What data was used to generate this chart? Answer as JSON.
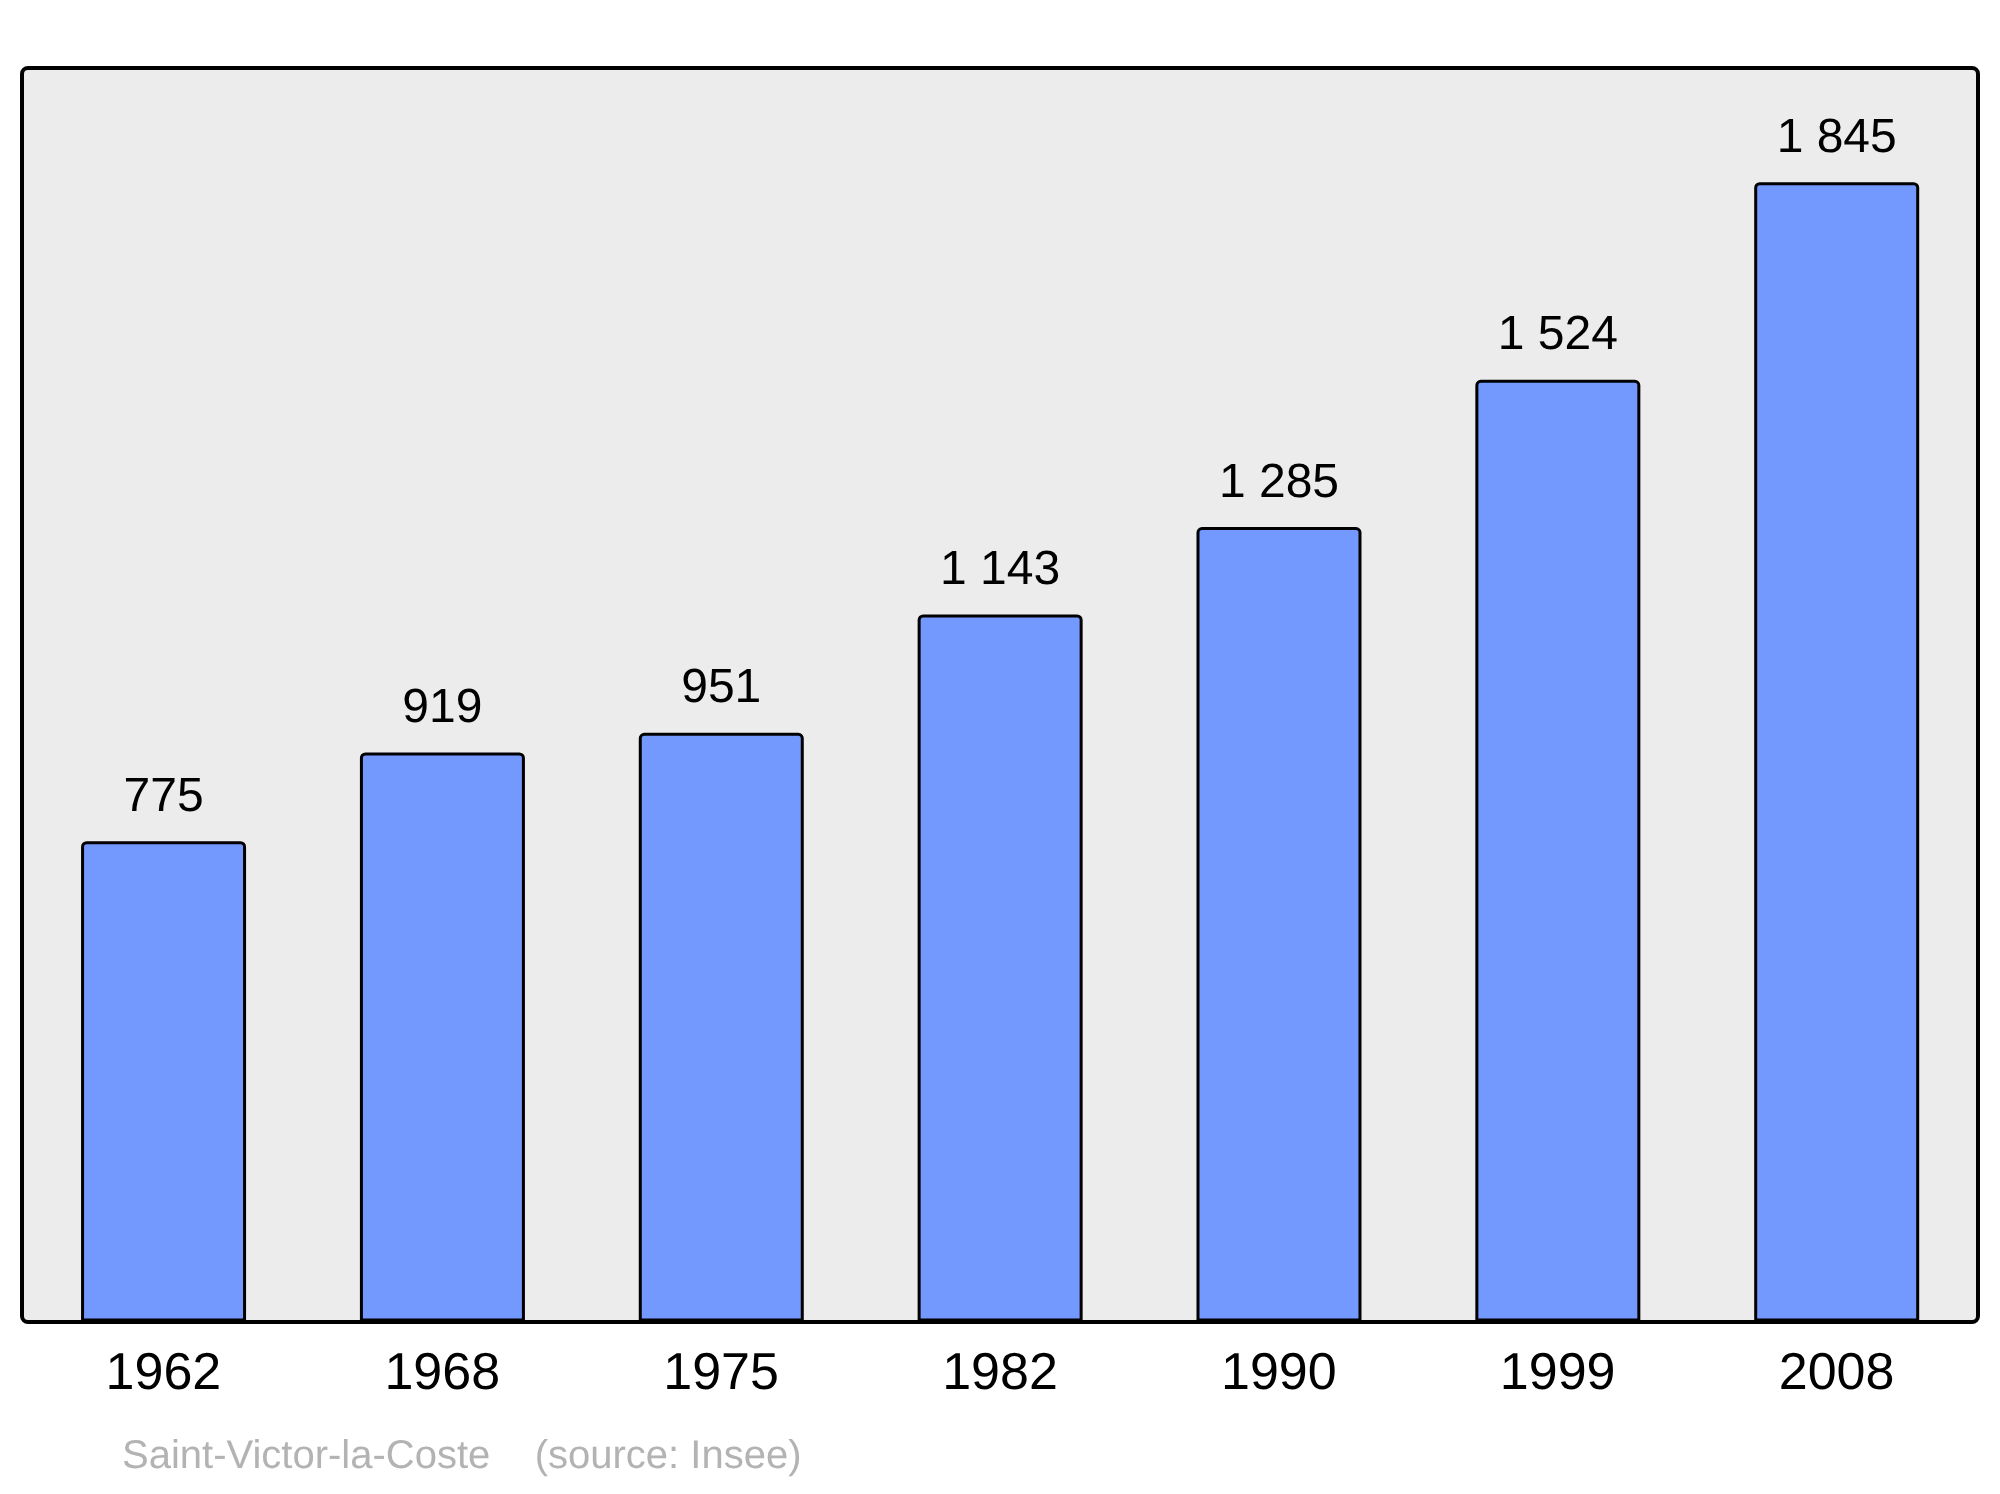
{
  "chart_data": {
    "type": "bar",
    "categories": [
      "1962",
      "1968",
      "1975",
      "1982",
      "1990",
      "1999",
      "2008"
    ],
    "values": [
      775,
      919,
      951,
      1143,
      1285,
      1524,
      1845
    ],
    "value_labels": [
      "775",
      "919",
      "951",
      "1 143",
      "1 285",
      "1 524",
      "1 845"
    ],
    "color": "#7399ff",
    "annotations": [
      "Saint-Victor-la-Coste    (source: Insee)"
    ],
    "grid": false,
    "legend": false
  }
}
